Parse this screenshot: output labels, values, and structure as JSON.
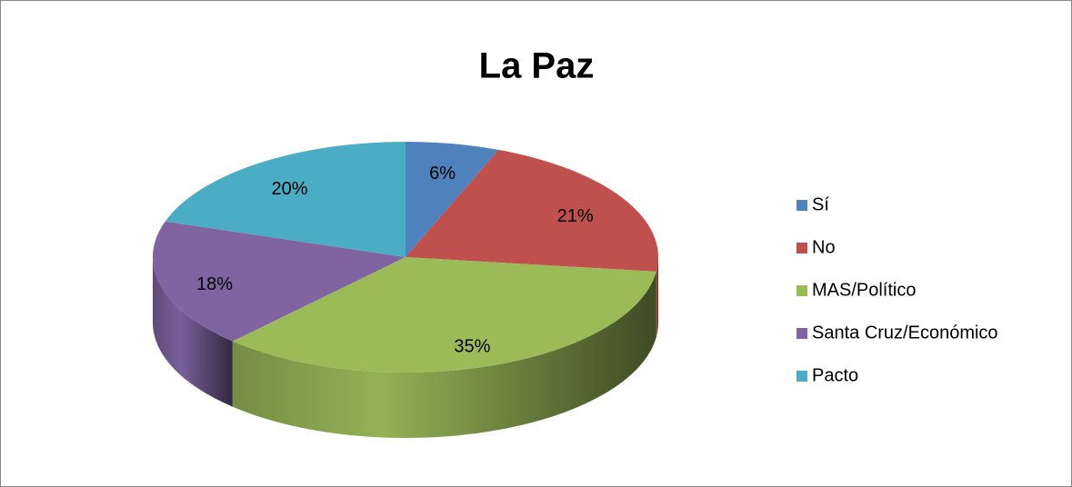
{
  "chart_data": {
    "type": "pie",
    "title": "La Paz",
    "categories": [
      "Sí",
      "No",
      "MAS/Político",
      "Santa Cruz/Económico",
      "Pacto"
    ],
    "values": [
      6,
      21,
      35,
      18,
      20
    ],
    "value_labels": [
      "6%",
      "21%",
      "35%",
      "18%",
      "20%"
    ],
    "colors": [
      "#4f81bd",
      "#c0504d",
      "#9bbb59",
      "#8064a2",
      "#4bacc6"
    ],
    "legend": "right"
  }
}
